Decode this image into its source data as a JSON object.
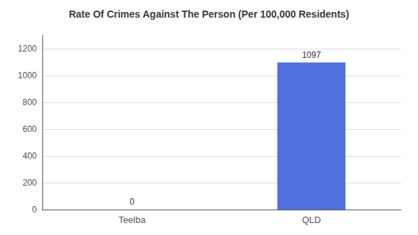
{
  "chart_data": {
    "type": "bar",
    "title": "Rate Of Crimes Against The Person (Per 100,000 Residents)",
    "categories": [
      "Teelba",
      "QLD"
    ],
    "values": [
      0,
      1097
    ],
    "ylim": [
      0,
      1300
    ],
    "yticks": [
      0,
      200,
      400,
      600,
      800,
      1000,
      1200
    ],
    "grid": true,
    "data_labels": true
  }
}
